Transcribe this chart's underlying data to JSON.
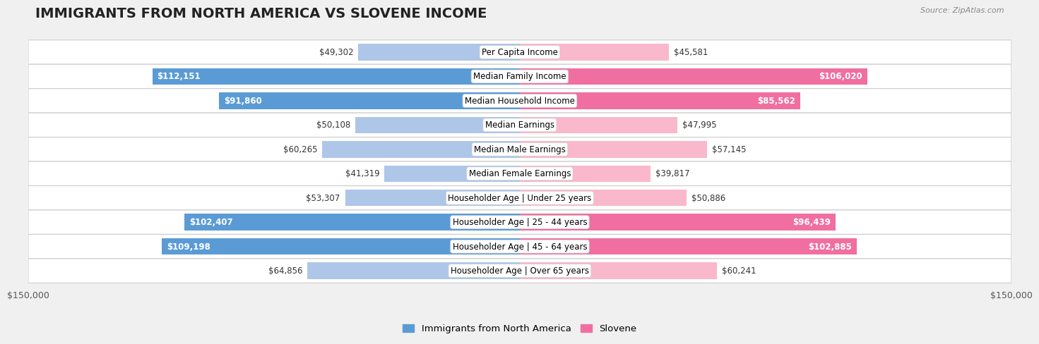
{
  "title": "IMMIGRANTS FROM NORTH AMERICA VS SLOVENE INCOME",
  "source": "Source: ZipAtlas.com",
  "categories": [
    "Per Capita Income",
    "Median Family Income",
    "Median Household Income",
    "Median Earnings",
    "Median Male Earnings",
    "Median Female Earnings",
    "Householder Age | Under 25 years",
    "Householder Age | 25 - 44 years",
    "Householder Age | 45 - 64 years",
    "Householder Age | Over 65 years"
  ],
  "left_values": [
    49302,
    112151,
    91860,
    50108,
    60265,
    41319,
    53307,
    102407,
    109198,
    64856
  ],
  "right_values": [
    45581,
    106020,
    85562,
    47995,
    57145,
    39817,
    50886,
    96439,
    102885,
    60241
  ],
  "left_labels": [
    "$49,302",
    "$112,151",
    "$91,860",
    "$50,108",
    "$60,265",
    "$41,319",
    "$53,307",
    "$102,407",
    "$109,198",
    "$64,856"
  ],
  "right_labels": [
    "$45,581",
    "$106,020",
    "$85,562",
    "$47,995",
    "$57,145",
    "$39,817",
    "$50,886",
    "$96,439",
    "$102,885",
    "$60,241"
  ],
  "left_color_light": "#aec6e8",
  "left_color_dark": "#5b9bd5",
  "right_color_light": "#f9b8cb",
  "right_color_dark": "#f06fa0",
  "max_value": 150000,
  "legend_left": "Immigrants from North America",
  "legend_right": "Slovene",
  "background_color": "#f0f0f0",
  "row_bg_color": "#ffffff",
  "title_fontsize": 14,
  "label_fontsize": 8.5,
  "bar_height": 0.68,
  "threshold": 65000
}
